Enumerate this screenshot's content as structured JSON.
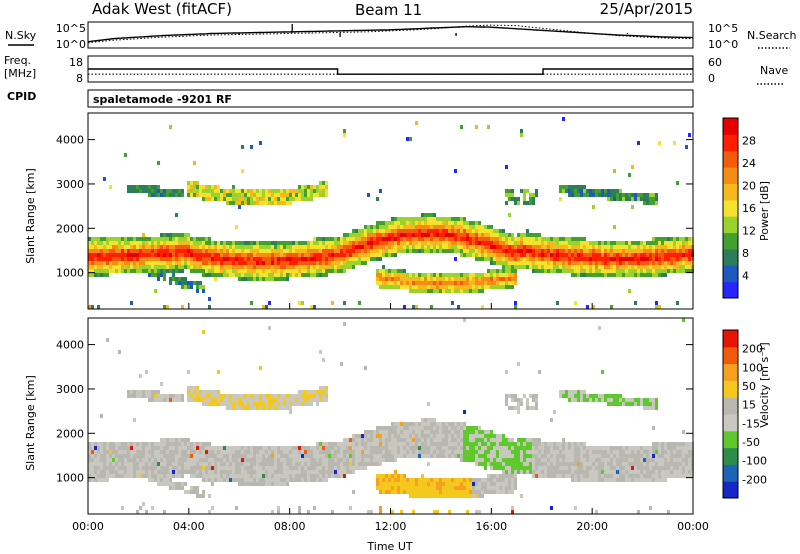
{
  "header": {
    "station": "Adak West (fitACF)",
    "beam": "Beam 11",
    "date": "25/Apr/2015"
  },
  "side_labels": {
    "nsky": "N.Sky",
    "nsearch": "N.Search",
    "freq_line1": "Freq.",
    "freq_line2": "[MHz]",
    "nave": "Nave",
    "cpid": "CPID"
  },
  "cpid_text": "spaletamode -9201 RF",
  "colors": {
    "power": [
      "#2525ff",
      "#1e5abe",
      "#2d7d5a",
      "#43a02f",
      "#9bd22d",
      "#f5e22d",
      "#f5b91e",
      "#f58c14",
      "#f55a0a",
      "#ff1e00",
      "#e60000"
    ],
    "velocity": [
      "#1428c8",
      "#1e64b4",
      "#2d8c4b",
      "#5fc82d",
      "#c8c8c0",
      "#b8b8b0",
      "#f5c81e",
      "#f5a01e",
      "#f05a0a",
      "#e61400"
    ]
  },
  "chart_data": [
    {
      "type": "line",
      "name": "noise-panel",
      "x_range_hours": [
        0,
        24
      ],
      "y_left_ticks": [
        "10^5",
        "10^0"
      ],
      "y_right_ticks": [
        "10^5",
        "10^0"
      ],
      "series": [
        {
          "name": "N.Sky",
          "style": "solid",
          "x": [
            0,
            1,
            2,
            3,
            4,
            5,
            6,
            7,
            8,
            9,
            10,
            11,
            12,
            13,
            14,
            15,
            16,
            17,
            18,
            19,
            20,
            21,
            22,
            23,
            24
          ],
          "y": [
            1.2,
            1.8,
            2.1,
            2.4,
            2.6,
            2.8,
            2.9,
            3.0,
            3.1,
            3.2,
            3.3,
            3.4,
            3.5,
            3.7,
            3.9,
            4.1,
            4.0,
            3.7,
            3.4,
            3.1,
            2.8,
            2.5,
            2.3,
            2.1,
            2.0
          ]
        },
        {
          "name": "N.Search",
          "style": "dotted",
          "x": [
            0,
            1,
            2,
            3,
            4,
            5,
            6,
            7,
            8,
            9,
            10,
            11,
            12,
            13,
            14,
            15,
            16,
            17,
            18,
            19,
            20,
            21,
            22,
            23,
            24
          ],
          "y": [
            1.0,
            1.5,
            1.8,
            2.1,
            2.3,
            2.5,
            2.6,
            2.7,
            2.8,
            2.9,
            3.0,
            3.1,
            3.3,
            3.5,
            3.8,
            4.2,
            4.4,
            4.3,
            3.8,
            3.3,
            2.8,
            2.4,
            2.1,
            1.9,
            1.8
          ]
        }
      ]
    },
    {
      "type": "line",
      "name": "freq-nave-panel",
      "x_range_hours": [
        0,
        24
      ],
      "y_left_ticks": [
        "18",
        "8"
      ],
      "y_right_ticks": [
        "60",
        "0"
      ],
      "series": [
        {
          "name": "Freq.",
          "style": "solid",
          "x": [
            0,
            9.9,
            9.9,
            18.05,
            18.05,
            24
          ],
          "y": [
            13,
            13,
            11,
            11,
            13,
            13
          ]
        },
        {
          "name": "Nave",
          "style": "dotted",
          "x": [
            0,
            24
          ],
          "y": [
            18,
            18
          ]
        }
      ]
    },
    {
      "type": "heatmap",
      "name": "power-panel",
      "x_range_hours": [
        0,
        24
      ],
      "ylabel": "Slant Range [km]",
      "ylim": [
        180,
        4600
      ],
      "y_ticks": [
        "4000",
        "3000",
        "2000",
        "1000"
      ],
      "colorbar": {
        "label": "Power [dB]",
        "ticks": [
          "28",
          "24",
          "20",
          "16",
          "12",
          "8",
          "4"
        ],
        "range": [
          0,
          31
        ]
      }
    },
    {
      "type": "heatmap",
      "name": "velocity-panel",
      "x_range_hours": [
        0,
        24
      ],
      "xlabel": "Time UT",
      "ylabel": "Slant Range [km]",
      "ylim": [
        180,
        4600
      ],
      "y_ticks": [
        "4000",
        "3000",
        "2000",
        "1000"
      ],
      "x_ticks": [
        "00:00",
        "04:00",
        "08:00",
        "12:00",
        "16:00",
        "20:00",
        "00:00"
      ],
      "colorbar": {
        "label": "Velocity [m s⁻¹]",
        "ticks": [
          "200",
          "100",
          "50",
          "15",
          "-15",
          "-50",
          "-100",
          "-200"
        ]
      }
    }
  ]
}
